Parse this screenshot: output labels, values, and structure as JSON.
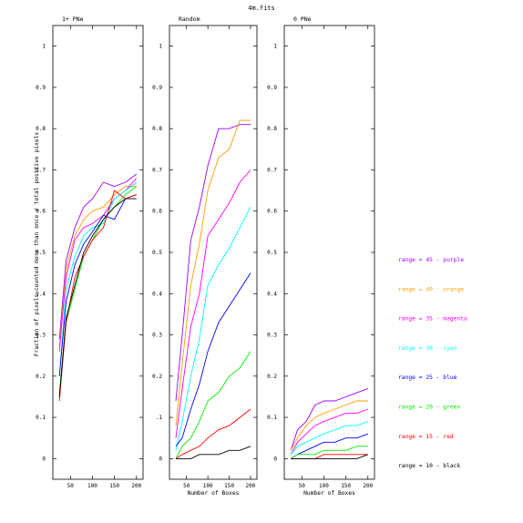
{
  "title": "4m.fits",
  "ylabel": "Fraction of pixels counted more than once / total positive pixels",
  "chart_data": [
    {
      "type": "line",
      "title": "1+ PNe",
      "xlabel": "",
      "ylabel": "Fraction of pixels counted more than once / total positive pixels",
      "x": [
        25,
        40,
        60,
        80,
        100,
        125,
        150,
        175,
        200
      ],
      "xticks": [
        50,
        100,
        150,
        200
      ],
      "yticks": [
        0,
        0.1,
        0.2,
        0.3,
        0.4,
        0.5,
        0.6,
        0.7,
        0.8,
        0.9,
        1
      ],
      "ytick_labels": [
        "0",
        "0.1",
        "0.2",
        "0.3",
        "0.4",
        "0.5",
        "0.6",
        "0.7",
        "0.8",
        "0.9",
        "1"
      ],
      "xlim": [
        10,
        215
      ],
      "ylim": [
        -0.05,
        1.05
      ],
      "grid": false,
      "series": [
        {
          "name": "range = 45 - purple",
          "color": "#a000ff",
          "values": [
            0.29,
            0.48,
            0.56,
            0.61,
            0.63,
            0.67,
            0.66,
            0.67,
            0.69
          ]
        },
        {
          "name": "range = 40 - orange",
          "color": "#ff9e00",
          "values": [
            0.27,
            0.46,
            0.54,
            0.58,
            0.6,
            0.61,
            0.64,
            0.66,
            0.66
          ]
        },
        {
          "name": "range = 35 - magenta",
          "color": "#ff00ff",
          "values": [
            0.26,
            0.44,
            0.53,
            0.56,
            0.57,
            0.59,
            0.63,
            0.65,
            0.68
          ]
        },
        {
          "name": "range = 30 - cyan",
          "color": "#00ffff",
          "values": [
            0.2,
            0.41,
            0.49,
            0.54,
            0.56,
            0.57,
            0.63,
            0.65,
            0.67
          ]
        },
        {
          "name": "range = 25 - blue",
          "color": "#0000ff",
          "values": [
            0.2,
            0.38,
            0.47,
            0.52,
            0.55,
            0.59,
            0.58,
            0.63,
            0.64
          ]
        },
        {
          "name": "range = 20 - green",
          "color": "#00ee00",
          "values": [
            0.16,
            0.33,
            0.41,
            0.49,
            0.53,
            0.58,
            0.61,
            0.64,
            0.66
          ]
        },
        {
          "name": "range = 15 - red",
          "color": "#ff0000",
          "values": [
            0.14,
            0.33,
            0.44,
            0.49,
            0.53,
            0.56,
            0.65,
            0.63,
            0.64
          ]
        },
        {
          "name": "range = 10 - black",
          "color": "#000000",
          "values": [
            0.15,
            0.34,
            0.42,
            0.5,
            0.54,
            0.58,
            0.61,
            0.63,
            0.63
          ]
        }
      ]
    },
    {
      "type": "line",
      "title": "Random",
      "xlabel": "Number of Boxes",
      "ylabel": "",
      "x": [
        25,
        40,
        60,
        80,
        100,
        125,
        150,
        175,
        200
      ],
      "xticks": [
        50,
        100,
        150,
        200
      ],
      "yticks": [
        0,
        0.1,
        0.2,
        0.3,
        0.4,
        0.5,
        0.6,
        0.7,
        0.8,
        0.9,
        1
      ],
      "ytick_labels": [
        "0",
        ".1",
        "0.2",
        "0.3",
        "0.4",
        "0.5",
        "0.6",
        "0.7",
        "0.8",
        "0.9",
        "1"
      ],
      "xlim": [
        10,
        215
      ],
      "ylim": [
        -0.05,
        1.05
      ],
      "grid": false,
      "series": [
        {
          "name": "range = 45 - purple",
          "color": "#a000ff",
          "values": [
            0.14,
            0.3,
            0.53,
            0.61,
            0.71,
            0.8,
            0.8,
            0.81,
            0.81
          ]
        },
        {
          "name": "range = 40 - orange",
          "color": "#ff9e00",
          "values": [
            0.08,
            0.23,
            0.42,
            0.52,
            0.65,
            0.73,
            0.75,
            0.82,
            0.82
          ]
        },
        {
          "name": "range = 35 - magenta",
          "color": "#ff00ff",
          "values": [
            0.05,
            0.17,
            0.32,
            0.4,
            0.54,
            0.58,
            0.62,
            0.67,
            0.7
          ]
        },
        {
          "name": "range = 30 - cyan",
          "color": "#00ffff",
          "values": [
            0.02,
            0.09,
            0.2,
            0.29,
            0.42,
            0.47,
            0.51,
            0.56,
            0.61
          ]
        },
        {
          "name": "range = 25 - blue",
          "color": "#0000ff",
          "values": [
            0.03,
            0.05,
            0.12,
            0.18,
            0.26,
            0.33,
            0.37,
            0.41,
            0.45
          ]
        },
        {
          "name": "range = 20 - green",
          "color": "#00ee00",
          "values": [
            0.0,
            0.03,
            0.05,
            0.09,
            0.14,
            0.16,
            0.2,
            0.22,
            0.26
          ]
        },
        {
          "name": "range = 15 - red",
          "color": "#ff0000",
          "values": [
            0.0,
            0.01,
            0.02,
            0.03,
            0.05,
            0.07,
            0.08,
            0.1,
            0.12
          ]
        },
        {
          "name": "range = 10 - black",
          "color": "#000000",
          "values": [
            0.0,
            0.0,
            0.0,
            0.01,
            0.01,
            0.01,
            0.02,
            0.02,
            0.03
          ]
        }
      ]
    },
    {
      "type": "line",
      "title": "0 PNe",
      "xlabel": "Number of Boxes",
      "ylabel": "",
      "x": [
        25,
        40,
        60,
        80,
        100,
        125,
        150,
        175,
        200
      ],
      "xticks": [
        50,
        100,
        150,
        200
      ],
      "yticks": [
        0,
        0.1,
        0.2,
        0.3,
        0.4,
        0.5,
        0.6,
        0.7,
        0.8,
        0.9,
        1
      ],
      "ytick_labels": [
        "0",
        "0.1",
        "0.2",
        "0.3",
        "0.4",
        "0.5",
        "0.6",
        "0.7",
        "0.8",
        "0.9",
        "1"
      ],
      "xlim": [
        10,
        215
      ],
      "ylim": [
        -0.05,
        1.05
      ],
      "grid": false,
      "series": [
        {
          "name": "range = 45 - purple",
          "color": "#a000ff",
          "values": [
            0.02,
            0.07,
            0.09,
            0.13,
            0.14,
            0.14,
            0.15,
            0.16,
            0.17
          ]
        },
        {
          "name": "range = 40 - orange",
          "color": "#ff9e00",
          "values": [
            0.02,
            0.05,
            0.08,
            0.1,
            0.11,
            0.12,
            0.13,
            0.14,
            0.14
          ]
        },
        {
          "name": "range = 35 - magenta",
          "color": "#ff00ff",
          "values": [
            0.01,
            0.04,
            0.06,
            0.08,
            0.09,
            0.1,
            0.11,
            0.11,
            0.12
          ]
        },
        {
          "name": "range = 30 - cyan",
          "color": "#00ffff",
          "values": [
            0.01,
            0.03,
            0.04,
            0.05,
            0.06,
            0.07,
            0.08,
            0.08,
            0.09
          ]
        },
        {
          "name": "range = 25 - blue",
          "color": "#0000ff",
          "values": [
            0.0,
            0.01,
            0.02,
            0.03,
            0.04,
            0.04,
            0.05,
            0.05,
            0.06
          ]
        },
        {
          "name": "range = 20 - green",
          "color": "#00ee00",
          "values": [
            0.0,
            0.01,
            0.01,
            0.01,
            0.02,
            0.02,
            0.02,
            0.03,
            0.03
          ]
        },
        {
          "name": "range = 15 - red",
          "color": "#ff0000",
          "values": [
            0.0,
            0.0,
            0.0,
            0.0,
            0.01,
            0.01,
            0.01,
            0.01,
            0.01
          ]
        },
        {
          "name": "range = 10 - black",
          "color": "#000000",
          "values": [
            0.0,
            0.0,
            0.0,
            0.0,
            0.0,
            0.0,
            0.0,
            0.0,
            0.01
          ]
        }
      ]
    }
  ]
}
